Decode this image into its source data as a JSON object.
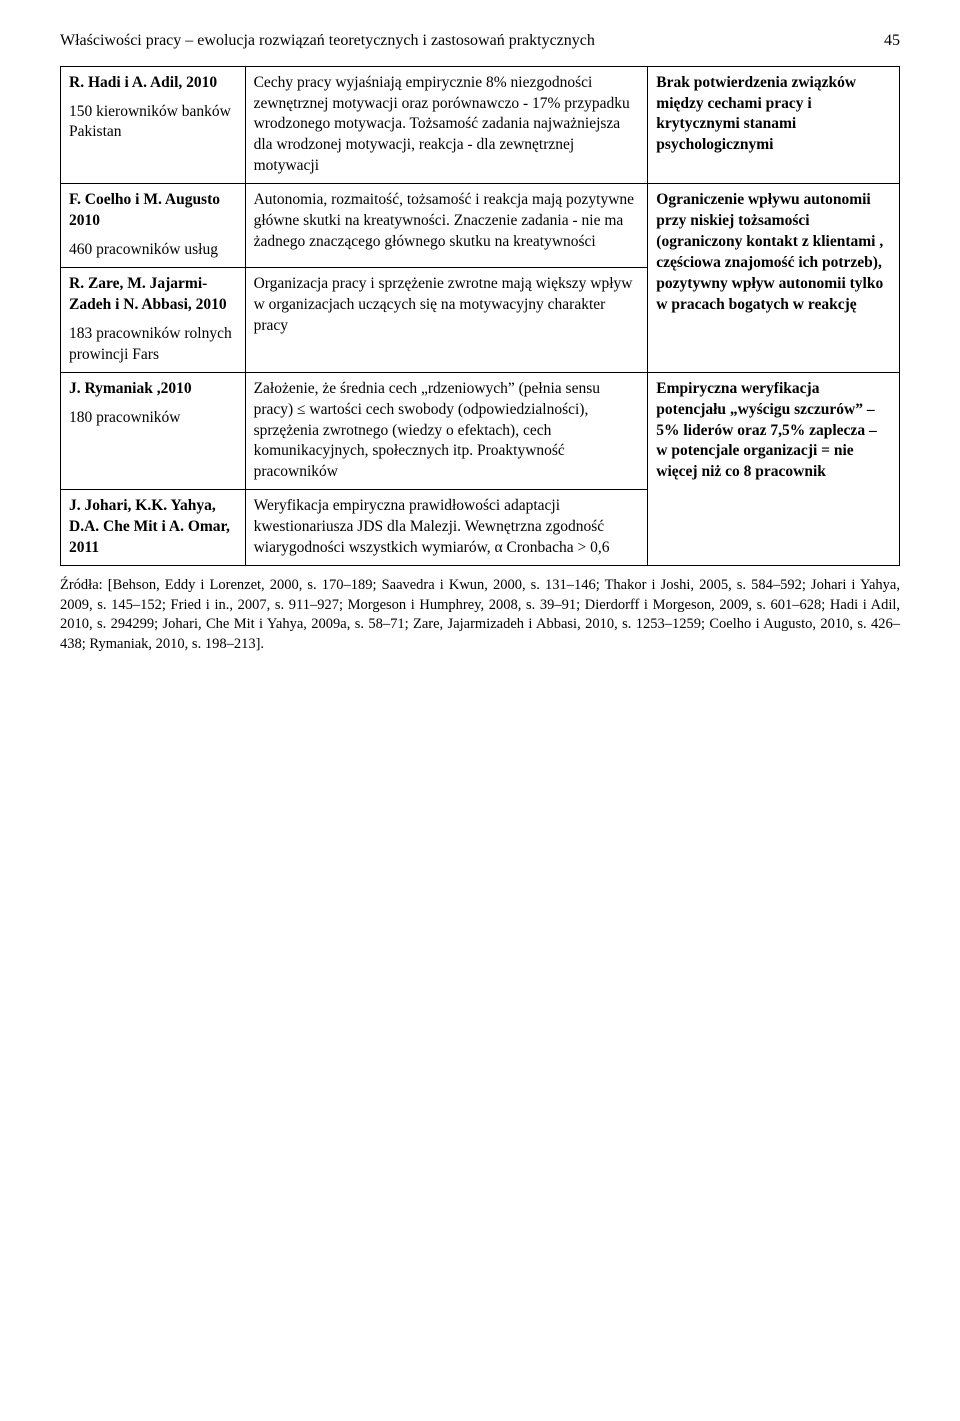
{
  "header": {
    "running_title": "Właściwości pracy – ewolucja rozwiązań teoretycznych i zastosowań praktycznych",
    "page_number": "45"
  },
  "rows": [
    {
      "author": "R. Hadi i A. Adil, 2010",
      "sample": "150 kierowników banków Pakistan",
      "finding": "Cechy pracy wyjaśniają empirycznie 8% niezgodności zewnętrznej motywacji oraz porównawczo - 17% przypadku wrodzonego motywacja. Tożsamość zadania najważniejsza dla wrodzonej motywacji, reakcja - dla zewnętrznej motywacji",
      "conclusion": "Brak potwierdzenia związków między cechami pracy i krytycznymi stanami psychologicznymi"
    },
    {
      "author": "F. Coelho i M. Augusto 2010",
      "sample": "460 pracowników usług",
      "finding": "Autonomia, rozmaitość, tożsamość i reakcja mają pozytywne główne skutki na kreatywności. Znaczenie zadania - nie ma żadnego znaczącego głównego skutku na kreatywności",
      "conclusion": "Ograniczenie wpływu autonomii przy niskiej tożsamości (ograniczony kontakt z klientami , częściowa znajomość ich potrzeb), pozytywny wpływ autonomii tylko w pracach bogatych w reakcję"
    },
    {
      "author": "R. Zare, M. Jajarmi-Zadeh i N. Abbasi, 2010",
      "sample": "183 pracowników rolnych prowincji Fars",
      "finding": "Organizacja pracy i sprzężenie zwrotne mają większy wpływ w organizacjach uczących się na motywacyjny charakter pracy"
    },
    {
      "author": "J. Rymaniak ,2010",
      "sample": "180 pracowników",
      "finding": "Założenie, że średnia cech „rdzeniowych” (pełnia sensu pracy) ≤ wartości cech swobody (odpowiedzialności), sprzężenia zwrotnego (wiedzy o efektach), cech komunikacyjnych, społecznych itp. Proaktywność pracowników",
      "conclusion": "Empiryczna weryfikacja potencjału „wyścigu szczurów” – 5% liderów oraz 7,5% zaplecza – w potencjale organizacji = nie więcej niż co 8 pracownik"
    },
    {
      "author": "J. Johari, K.K. Yahya, D.A. Che Mit i A. Omar, 2011",
      "sample": "",
      "finding": "Weryfikacja empiryczna prawidłowości adaptacji kwestionariusza JDS dla Malezji. Wewnętrzna zgodność wiarygodności wszystkich wymiarów, α Cronbacha > 0,6"
    }
  ],
  "sources": "Źródła: [Behson, Eddy i Lorenzet, 2000, s. 170–189; Saavedra i Kwun, 2000, s. 131–146; Thakor i Joshi, 2005, s. 584–592;  Johari i Yahya, 2009, s. 145–152; Fried i in., 2007, s. 911–927; Morgeson i Humphrey, 2008, s. 39–91; Dierdorff i Morgeson, 2009, s. 601–628; Hadi i Adil, 2010, s. 294299;  Johari, Che Mit i Yahya, 2009a, s. 58–71; Zare, Jajarmizadeh i Abbasi, 2010, s. 1253–1259; Coelho i Augusto, 2010, s. 426–438; Rymaniak, 2010, s. 198–213]."
}
